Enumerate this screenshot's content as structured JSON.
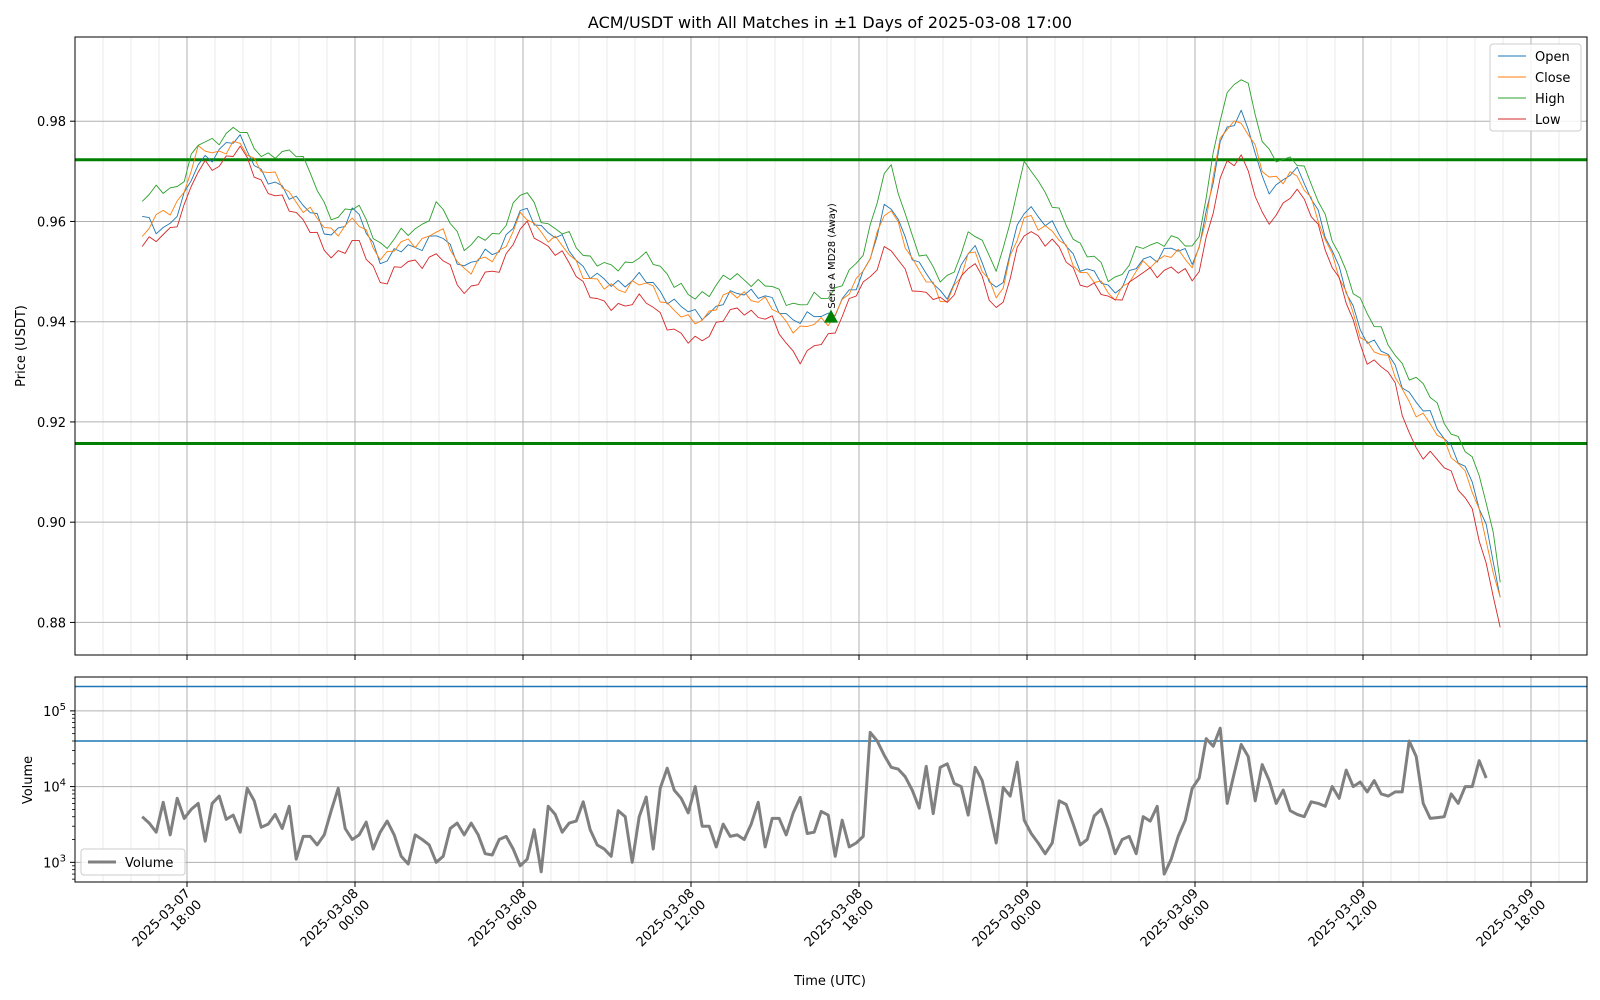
{
  "chart_data": [
    {
      "type": "line",
      "title": "ACM/USDT with All Matches in ±1 Days of 2025-03-08 17:00",
      "xlabel": "",
      "ylabel": "Price (USDT)",
      "ylim": [
        0.8735,
        0.9968
      ],
      "xlim": [
        "2025-03-07 14:00",
        "2025-03-09 20:00"
      ],
      "yticks": [
        "0.88",
        "0.90",
        "0.92",
        "0.94",
        "0.96",
        "0.98"
      ],
      "ytick_values": [
        0.88,
        0.9,
        0.92,
        0.94,
        0.96,
        0.98
      ],
      "grid": true,
      "legend": "upper-right",
      "series_colors": {
        "Open": "#1f77b4",
        "Close": "#ff7f0e",
        "High": "#2ca02c",
        "Low": "#d62728"
      },
      "hlines": [
        {
          "y": 0.9723,
          "color": "#008000"
        },
        {
          "y": 0.9157,
          "color": "#008000"
        }
      ],
      "marker": {
        "x": "2025-03-08 17:00",
        "y": 0.941,
        "label": "Serie A MD28 (Away)",
        "color": "#008000"
      },
      "anchors": [
        [
          "2025-03-07 16:24",
          0.961,
          0.957,
          0.964,
          0.955
        ],
        [
          "2025-03-07 17:00",
          0.957,
          0.961,
          0.966,
          0.956
        ],
        [
          "2025-03-07 17:50",
          0.964,
          0.965,
          0.968,
          0.962
        ],
        [
          "2025-03-07 18:30",
          0.972,
          0.975,
          0.976,
          0.971
        ],
        [
          "2025-03-07 19:15",
          0.975,
          0.974,
          0.977,
          0.972
        ],
        [
          "2025-03-07 20:00",
          0.976,
          0.975,
          0.978,
          0.974
        ],
        [
          "2025-03-07 21:00",
          0.967,
          0.969,
          0.972,
          0.965
        ],
        [
          "2025-03-07 22:00",
          0.965,
          0.964,
          0.975,
          0.962
        ],
        [
          "2025-03-07 23:00",
          0.957,
          0.958,
          0.961,
          0.953
        ],
        [
          "2025-03-08 00:00",
          0.962,
          0.96,
          0.963,
          0.956
        ],
        [
          "2025-03-08 01:00",
          0.952,
          0.953,
          0.955,
          0.948
        ],
        [
          "2025-03-08 02:00",
          0.955,
          0.956,
          0.958,
          0.952
        ],
        [
          "2025-03-08 03:00",
          0.957,
          0.958,
          0.963,
          0.953
        ],
        [
          "2025-03-08 04:00",
          0.951,
          0.95,
          0.955,
          0.946
        ],
        [
          "2025-03-08 05:00",
          0.954,
          0.953,
          0.957,
          0.95
        ],
        [
          "2025-03-08 06:00",
          0.962,
          0.961,
          0.966,
          0.959
        ],
        [
          "2025-03-08 07:00",
          0.958,
          0.957,
          0.959,
          0.955
        ],
        [
          "2025-03-08 08:00",
          0.952,
          0.951,
          0.955,
          0.949
        ],
        [
          "2025-03-08 09:00",
          0.947,
          0.946,
          0.95,
          0.942
        ],
        [
          "2025-03-08 10:00",
          0.949,
          0.948,
          0.953,
          0.945
        ],
        [
          "2025-03-08 11:00",
          0.946,
          0.945,
          0.951,
          0.941
        ],
        [
          "2025-03-08 12:00",
          0.941,
          0.939,
          0.944,
          0.935
        ],
        [
          "2025-03-08 13:00",
          0.943,
          0.944,
          0.948,
          0.94
        ],
        [
          "2025-03-08 14:00",
          0.947,
          0.946,
          0.949,
          0.943
        ],
        [
          "2025-03-08 15:00",
          0.943,
          0.942,
          0.946,
          0.939
        ],
        [
          "2025-03-08 16:00",
          0.94,
          0.938,
          0.943,
          0.932
        ],
        [
          "2025-03-08 17:00",
          0.942,
          0.941,
          0.946,
          0.938
        ],
        [
          "2025-03-08 18:00",
          0.947,
          0.948,
          0.951,
          0.946
        ],
        [
          "2025-03-08 19:00",
          0.964,
          0.963,
          0.972,
          0.955
        ],
        [
          "2025-03-08 20:00",
          0.953,
          0.952,
          0.956,
          0.947
        ],
        [
          "2025-03-08 21:00",
          0.944,
          0.943,
          0.947,
          0.943
        ],
        [
          "2025-03-08 22:00",
          0.955,
          0.954,
          0.958,
          0.952
        ],
        [
          "2025-03-08 23:00",
          0.946,
          0.945,
          0.951,
          0.942
        ],
        [
          "2025-03-09 00:00",
          0.964,
          0.962,
          0.973,
          0.959
        ],
        [
          "2025-03-09 01:00",
          0.958,
          0.957,
          0.962,
          0.955
        ],
        [
          "2025-03-09 02:00",
          0.951,
          0.95,
          0.955,
          0.948
        ],
        [
          "2025-03-09 03:00",
          0.946,
          0.945,
          0.948,
          0.944
        ],
        [
          "2025-03-09 04:00",
          0.951,
          0.95,
          0.954,
          0.949
        ],
        [
          "2025-03-09 05:00",
          0.955,
          0.954,
          0.957,
          0.951
        ],
        [
          "2025-03-09 06:00",
          0.952,
          0.951,
          0.954,
          0.948
        ],
        [
          "2025-03-09 07:00",
          0.977,
          0.978,
          0.983,
          0.97
        ],
        [
          "2025-03-09 07:45",
          0.983,
          0.981,
          0.991,
          0.974
        ],
        [
          "2025-03-09 08:30",
          0.965,
          0.968,
          0.973,
          0.958
        ],
        [
          "2025-03-09 09:30",
          0.971,
          0.97,
          0.973,
          0.967
        ],
        [
          "2025-03-09 10:30",
          0.961,
          0.96,
          0.964,
          0.958
        ],
        [
          "2025-03-09 11:30",
          0.944,
          0.943,
          0.947,
          0.942
        ],
        [
          "2025-03-09 12:00",
          0.938,
          0.937,
          0.944,
          0.934
        ],
        [
          "2025-03-09 13:00",
          0.932,
          0.931,
          0.934,
          0.929
        ],
        [
          "2025-03-09 14:00",
          0.923,
          0.921,
          0.928,
          0.913
        ],
        [
          "2025-03-09 15:00",
          0.917,
          0.916,
          0.92,
          0.912
        ],
        [
          "2025-03-09 16:00",
          0.906,
          0.905,
          0.911,
          0.9
        ],
        [
          "2025-03-09 16:30",
          0.898,
          0.895,
          0.904,
          0.89
        ],
        [
          "2025-03-09 16:54",
          0.885,
          0.885,
          0.888,
          0.879
        ]
      ],
      "series": [
        {
          "name": "Open",
          "color": "#1f77b4"
        },
        {
          "name": "Close",
          "color": "#ff7f0e"
        },
        {
          "name": "High",
          "color": "#2ca02c"
        },
        {
          "name": "Low",
          "color": "#d62728"
        }
      ]
    },
    {
      "type": "line",
      "title": "",
      "xlabel": "Time (UTC)",
      "ylabel": "Volume",
      "yscale": "log",
      "ylim": [
        550,
        280000
      ],
      "yticks": [
        "10^3",
        "10^4",
        "10^5"
      ],
      "ytick_values": [
        1000,
        10000,
        100000
      ],
      "grid": true,
      "legend": "lower-left",
      "hlines": [
        {
          "y": 210000,
          "color": "#1f77b4"
        },
        {
          "y": 40000,
          "color": "#1f77b4"
        }
      ],
      "xticks": [
        {
          "x": "2025-03-07 18:00",
          "label": [
            "2025-03-07",
            "18:00"
          ]
        },
        {
          "x": "2025-03-08 00:00",
          "label": [
            "2025-03-08",
            "00:00"
          ]
        },
        {
          "x": "2025-03-08 06:00",
          "label": [
            "2025-03-08",
            "06:00"
          ]
        },
        {
          "x": "2025-03-08 12:00",
          "label": [
            "2025-03-08",
            "12:00"
          ]
        },
        {
          "x": "2025-03-08 18:00",
          "label": [
            "2025-03-08",
            "18:00"
          ]
        },
        {
          "x": "2025-03-09 00:00",
          "label": [
            "2025-03-09",
            "00:00"
          ]
        },
        {
          "x": "2025-03-09 06:00",
          "label": [
            "2025-03-09",
            "06:00"
          ]
        },
        {
          "x": "2025-03-09 12:00",
          "label": [
            "2025-03-09",
            "12:00"
          ]
        },
        {
          "x": "2025-03-09 18:00",
          "label": [
            "2025-03-09",
            "18:00"
          ]
        }
      ],
      "series": [
        {
          "name": "Volume",
          "color": "#808080",
          "x_start": "2025-03-07 16:24",
          "x_step_minutes": 15,
          "values": [
            4000,
            3300,
            2500,
            6200,
            2300,
            7000,
            3800,
            5000,
            6000,
            1900,
            6000,
            7500,
            3700,
            4200,
            2500,
            9500,
            6500,
            2900,
            3200,
            4300,
            2800,
            5500,
            1100,
            2200,
            2200,
            1700,
            2300,
            4800,
            9500,
            2800,
            2000,
            2300,
            3400,
            1500,
            2500,
            3500,
            2300,
            1200,
            950,
            2300,
            2000,
            1700,
            1000,
            1200,
            2800,
            3300,
            2300,
            3300,
            2300,
            1300,
            1250,
            2000,
            2200,
            1500,
            900,
            1100,
            2700,
            750,
            5500,
            4300,
            2500,
            3300,
            3500,
            6300,
            2700,
            1700,
            1500,
            1200,
            4800,
            4000,
            1000,
            4000,
            7300,
            1500,
            9500,
            17500,
            9000,
            7000,
            4500,
            10000,
            3000,
            3000,
            1600,
            3200,
            2200,
            2300,
            2000,
            3200,
            6200,
            1600,
            3800,
            3800,
            2300,
            4500,
            7200,
            2400,
            2500,
            4700,
            4200,
            1200,
            3600,
            1600,
            1800,
            2200,
            52000,
            40000,
            26000,
            18000,
            17000,
            13500,
            9000,
            5200,
            18500,
            4400,
            18000,
            20000,
            11000,
            10000,
            4200,
            18000,
            12000,
            4800,
            1800,
            9800,
            7500,
            21000,
            3600,
            2400,
            1800,
            1300,
            1800,
            6500,
            5800,
            3200,
            1700,
            2000,
            4100,
            5000,
            2800,
            1300,
            2000,
            2200,
            1300,
            4000,
            3500,
            5500,
            700,
            1100,
            2200,
            3600,
            9500,
            13000,
            43000,
            34000,
            59000,
            6000,
            15000,
            36000,
            25000,
            6500,
            19500,
            12000,
            6000,
            9000,
            4800,
            4300,
            4000,
            6300,
            6000,
            5500,
            10000,
            7000,
            16500,
            10000,
            11500,
            8500,
            12000,
            8000,
            7500,
            8500,
            8500,
            40000,
            25000,
            6000,
            3800,
            3900,
            4000,
            8000,
            6000,
            10000,
            10000,
            22000,
            13000
          ]
        }
      ]
    }
  ]
}
